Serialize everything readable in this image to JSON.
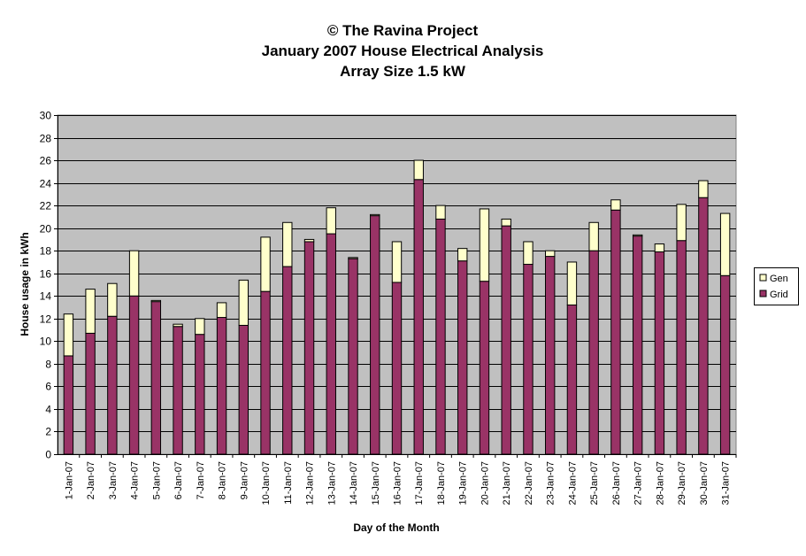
{
  "chart_data": {
    "type": "bar",
    "stacked": true,
    "title": [
      "© The Ravina Project",
      "January 2007 House Electrical Analysis",
      "Array Size 1.5 kW"
    ],
    "xlabel": "Day of the Month",
    "ylabel": "House usage in kWh",
    "ylim": [
      0,
      30
    ],
    "ytick_step": 2,
    "grid": true,
    "legend_position": "right",
    "categories": [
      "1-Jan-07",
      "2-Jan-07",
      "3-Jan-07",
      "4-Jan-07",
      "5-Jan-07",
      "6-Jan-07",
      "7-Jan-07",
      "8-Jan-07",
      "9-Jan-07",
      "10-Jan-07",
      "11-Jan-07",
      "12-Jan-07",
      "13-Jan-07",
      "14-Jan-07",
      "15-Jan-07",
      "16-Jan-07",
      "17-Jan-07",
      "18-Jan-07",
      "19-Jan-07",
      "20-Jan-07",
      "21-Jan-07",
      "22-Jan-07",
      "23-Jan-07",
      "24-Jan-07",
      "25-Jan-07",
      "26-Jan-07",
      "27-Jan-07",
      "28-Jan-07",
      "29-Jan-07",
      "30-Jan-07",
      "31-Jan-07"
    ],
    "series": [
      {
        "name": "Grid",
        "color": "#993366",
        "values": [
          8.7,
          10.7,
          12.2,
          14.0,
          13.5,
          11.3,
          10.6,
          12.1,
          11.4,
          14.4,
          16.6,
          18.8,
          19.5,
          17.3,
          21.1,
          15.2,
          24.3,
          20.8,
          17.1,
          15.3,
          20.2,
          16.8,
          17.5,
          13.2,
          18.0,
          21.6,
          19.3,
          17.9,
          18.9,
          22.7,
          15.8
        ]
      },
      {
        "name": "Gen",
        "color": "#FFFFCC",
        "values": [
          3.7,
          3.9,
          2.9,
          4.0,
          0.1,
          0.2,
          1.4,
          1.3,
          4.0,
          4.8,
          3.9,
          0.2,
          2.3,
          0.1,
          0.1,
          3.6,
          1.7,
          1.2,
          1.1,
          6.4,
          0.6,
          2.0,
          0.5,
          3.8,
          2.5,
          0.9,
          0.1,
          0.7,
          3.2,
          1.5,
          5.5
        ]
      }
    ],
    "colors": {
      "plot_background": "#C0C0C0",
      "grid": "#000000",
      "page_background": "#FFFFFF"
    }
  }
}
